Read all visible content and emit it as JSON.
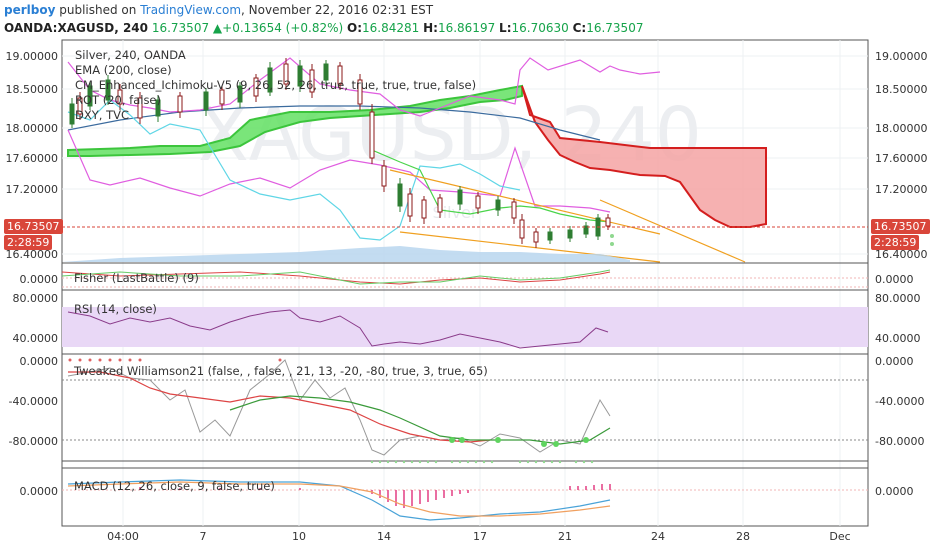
{
  "header": {
    "user": "perlboy",
    "published_text": " published on ",
    "site": "TradingView.com",
    "date_text": ", November 22, 2016 02:31 EST"
  },
  "quote": {
    "symbol": "OANDA:XAGUSD, 240",
    "last": "16.73507",
    "arrow": "▲",
    "change": "+0.13654 (+0.82%)",
    "open_label": "O:",
    "open": "16.84281",
    "high_label": "H:",
    "high": "16.86197",
    "low_label": "L:",
    "low": "16.70630",
    "close_label": "C:",
    "close": "16.73507"
  },
  "main_legend": {
    "line1": "Silver, 240, OANDA",
    "line2": "EMA (200, close)",
    "line3": "CM_Enhanced_Ichimoku-V5 (9, 26, 52, 26, true, true, true, true, false)",
    "line4": "ROT (20, false)",
    "line5": "DXY, TVC"
  },
  "watermark": {
    "symbol": "XAGUSD, 240",
    "sub": "Silver"
  },
  "price_axis": {
    "ticks": [
      "19.00000",
      "18.50000",
      "18.00000",
      "17.60000",
      "17.20000",
      "16.40000"
    ],
    "last_price": "16.73507",
    "countdown": "2:28:59"
  },
  "panes": {
    "fisher": {
      "label": "Fisher (LastBattle) (9)",
      "tick": "0.0000"
    },
    "rsi": {
      "label": "RSI (14, close)",
      "ticks": [
        "80.0000",
        "40.0000"
      ]
    },
    "williams": {
      "label": "Tweaked Williamson21 (false, , false, , 21, 13, -20, -80, true, 3, true, 65)",
      "ticks": [
        "0.0000",
        "-40.0000",
        "-80.0000"
      ]
    },
    "macd": {
      "label": "MACD (12, 26, close, 9, false, true)",
      "tick": "0.0000"
    }
  },
  "time_axis": {
    "ticks": [
      "04:00",
      "7",
      "10",
      "14",
      "17",
      "21",
      "24",
      "28",
      "Dec"
    ]
  },
  "colors": {
    "up": "#16a34a",
    "down": "#b91c1c",
    "ichimoku_cloud_bull": "#5dde5d",
    "ichimoku_cloud_bear": "#f4a6a6",
    "rsi_band": "#e9d8f6",
    "price_line": "#d9463a"
  }
}
